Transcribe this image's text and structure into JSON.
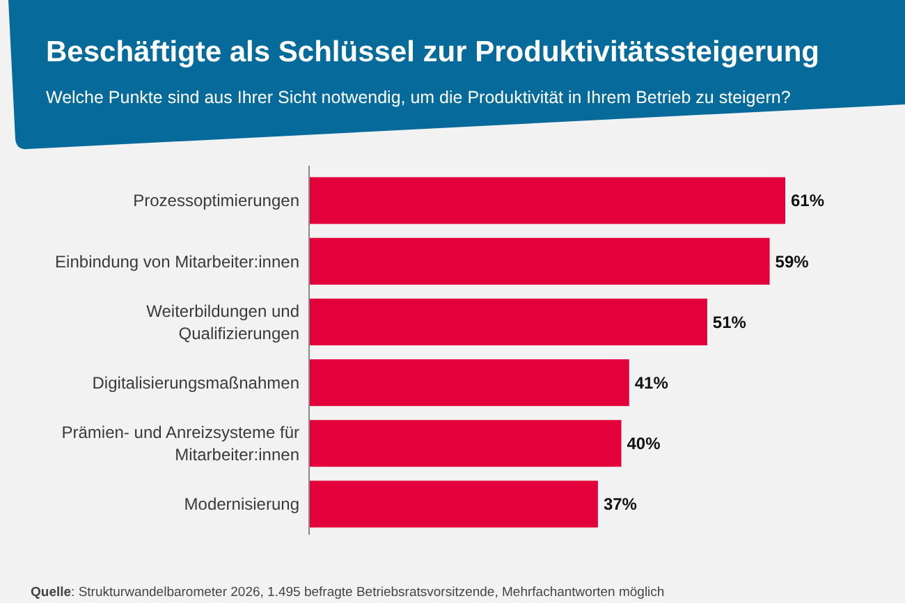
{
  "chart_data": {
    "type": "bar",
    "orientation": "horizontal",
    "title": "Beschäftigte als Schlüssel zur Produktivitätssteigerung",
    "subtitle": "Welche Punkte sind aus Ihrer Sicht notwendig, um die Produktivität in Ihrem Betrieb zu steigern?",
    "categories": [
      "Prozessoptimierungen",
      "Einbindung von Mitarbeiter:innen",
      "Weiterbildungen und Qualifizierungen",
      "Digitalisierungsmaßnahmen",
      "Prämien- und Anreizsysteme für Mitarbeiter:innen",
      "Modernisierung"
    ],
    "values": [
      61,
      59,
      51,
      41,
      40,
      37
    ],
    "value_labels": [
      "61%",
      "59%",
      "51%",
      "41%",
      "40%",
      "37%"
    ],
    "color": "#e4003a",
    "tick_labels": "y",
    "annotations": [
      "Quelle: Strukturwandelbarometer 2026, 1.495 befragte Betriebsratsvorsitzende, Mehrfachantworten möglich"
    ]
  }
}
